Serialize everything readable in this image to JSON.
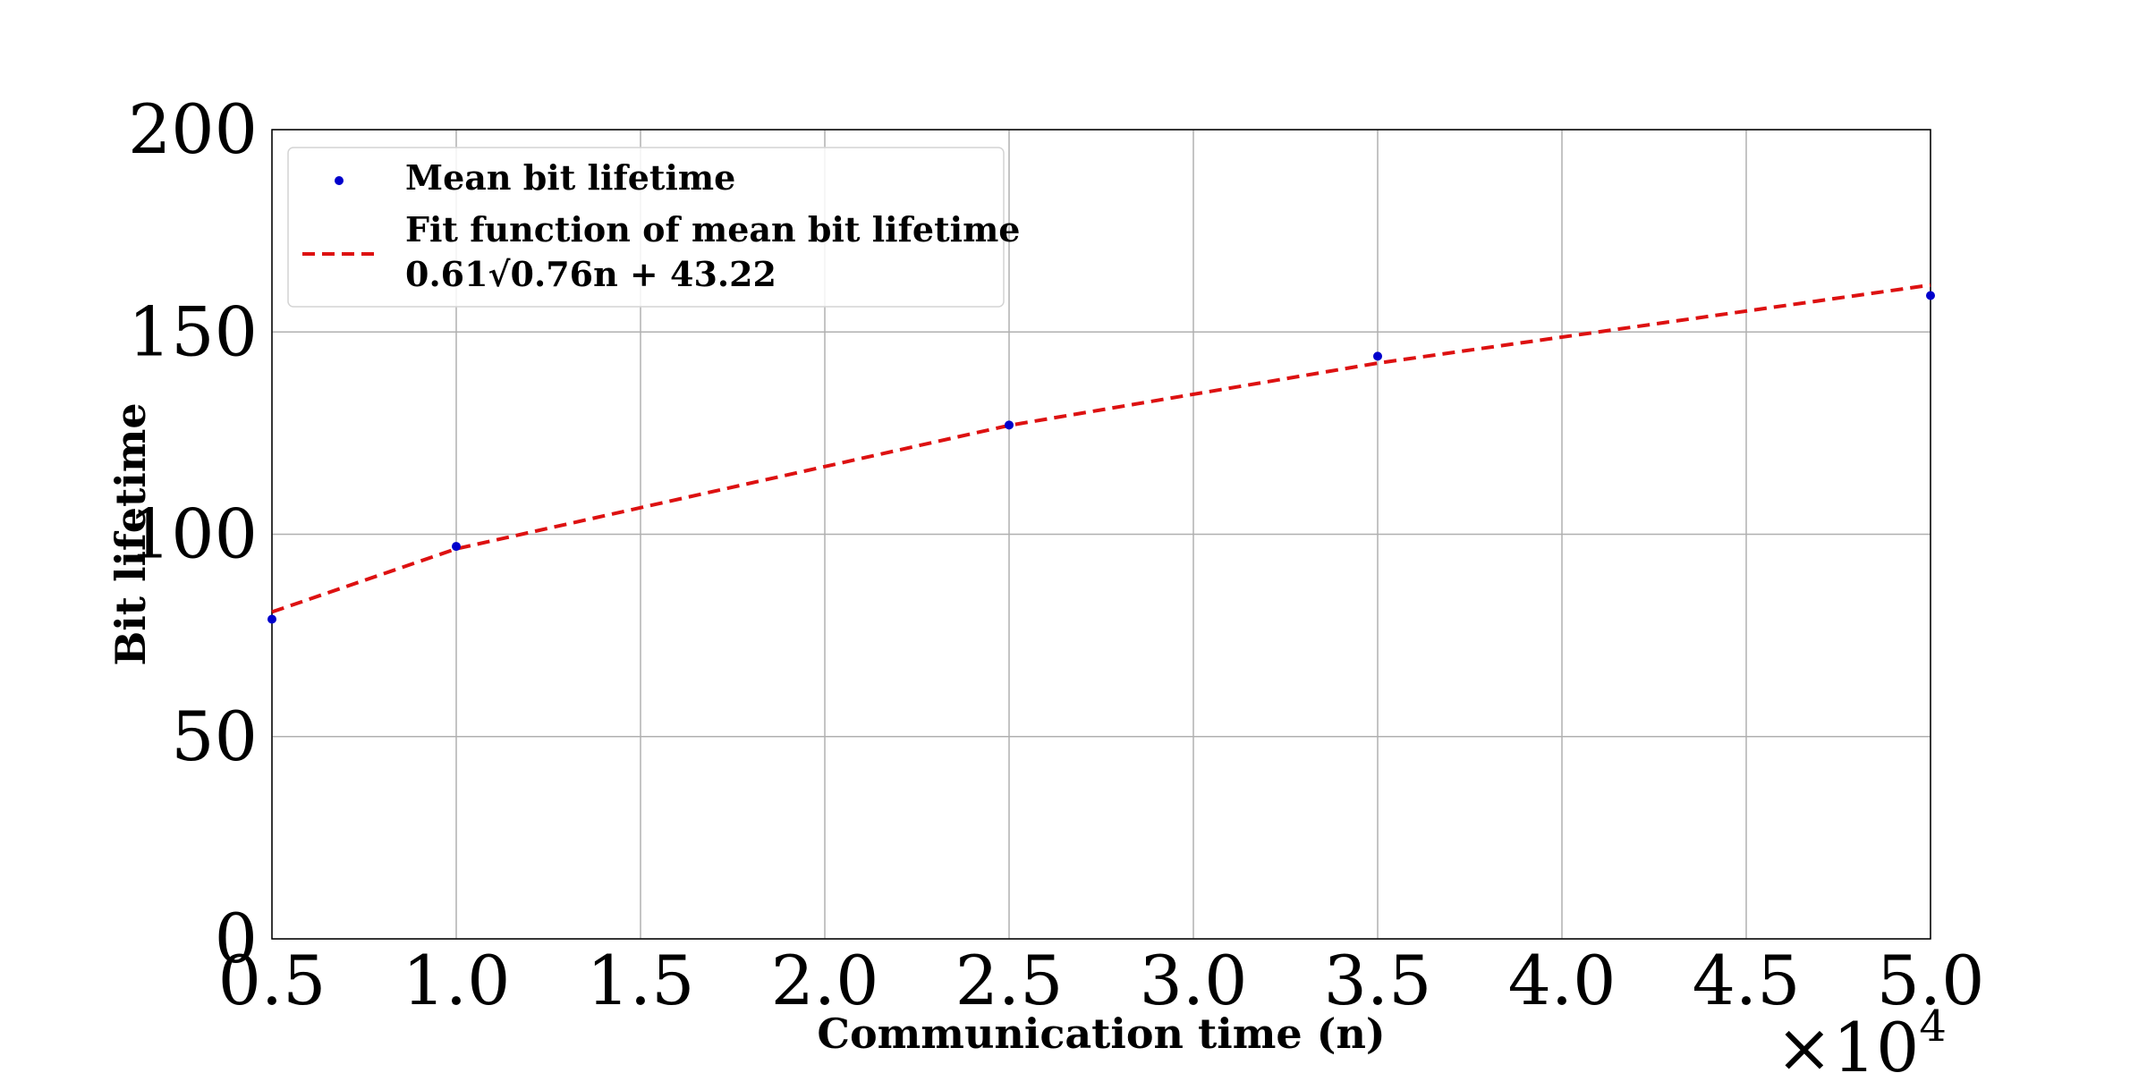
{
  "chart_data": {
    "type": "scatter",
    "xlabel": "Communication time (n)",
    "ylabel": "Bit lifetime",
    "x_multiplier": "×10",
    "x_multiplier_exp": "4",
    "xlim": [
      0.5,
      5.0
    ],
    "ylim": [
      0,
      200
    ],
    "x_ticks": [
      0.5,
      1.0,
      1.5,
      2.0,
      2.5,
      3.0,
      3.5,
      4.0,
      4.5,
      5.0
    ],
    "x_tick_labels": [
      "0.5",
      "1.0",
      "1.5",
      "2.0",
      "2.5",
      "3.0",
      "3.5",
      "4.0",
      "4.5",
      "5.0"
    ],
    "y_ticks": [
      0,
      50,
      100,
      150,
      200
    ],
    "y_tick_labels": [
      "0",
      "50",
      "100",
      "150",
      "200"
    ],
    "grid": true,
    "legend_placement": "top-left",
    "series": [
      {
        "name": "Mean bit lifetime",
        "kind": "scatter",
        "color": "#0000cc",
        "x": [
          0.5,
          1.0,
          2.5,
          3.5,
          5.0
        ],
        "y": [
          79,
          97,
          127,
          144,
          159
        ]
      },
      {
        "name": "Fit function of mean bit lifetime",
        "name_line2": "0.61√0.76n + 43.22",
        "kind": "line",
        "style": "dashed",
        "color": "#dd1111",
        "x": [
          0.5,
          1.0,
          2.5,
          3.5,
          5.0
        ],
        "y": [
          80.8,
          96.4,
          126.9,
          142.3,
          161.6
        ]
      }
    ]
  }
}
